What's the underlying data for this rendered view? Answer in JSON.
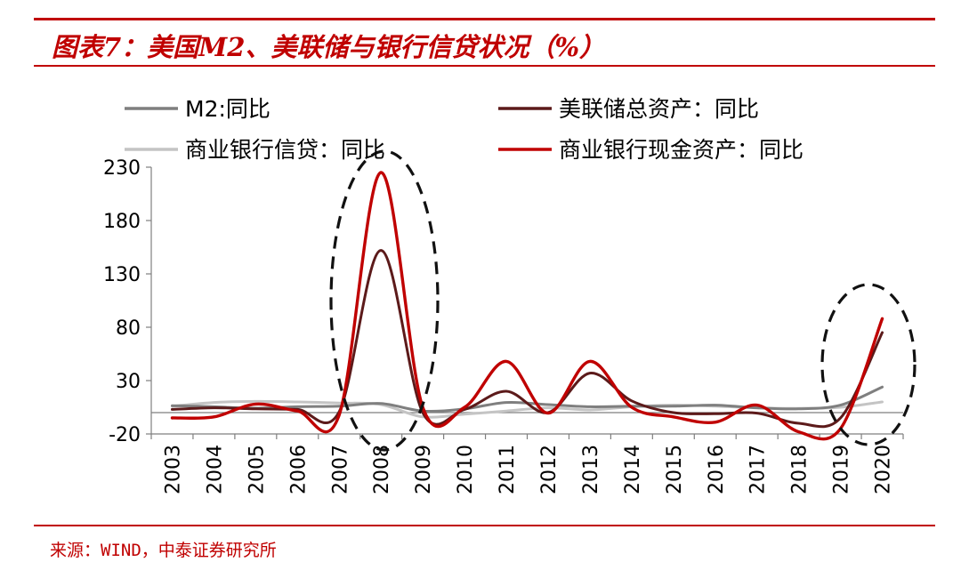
{
  "title": "图表7：美国M2、美联储与银行信贷状况（%）",
  "source": "来源：WIND，中泰证券研究所",
  "chart_data": {
    "type": "line",
    "x": [
      "2003",
      "2004",
      "2005",
      "2006",
      "2007",
      "2008",
      "2009",
      "2010",
      "2011",
      "2012",
      "2013",
      "2014",
      "2015",
      "2016",
      "2017",
      "2018",
      "2019",
      "2020"
    ],
    "ylim": [
      -20,
      230
    ],
    "yticks": [
      -20,
      30,
      80,
      130,
      180,
      230
    ],
    "legend_position": "top",
    "grid": false,
    "series": [
      {
        "name": "M2:同比",
        "color": "#7f7f7f",
        "values": [
          6.5,
          5.5,
          4.2,
          5.5,
          6.0,
          8.5,
          1.5,
          3.5,
          9.5,
          7.5,
          5.5,
          6.0,
          6.0,
          7.0,
          4.5,
          3.5,
          7.0,
          24.0
        ]
      },
      {
        "name": "美联储总资产：同比",
        "color": "#5c1a1a",
        "values": [
          3.0,
          4.5,
          3.5,
          3.0,
          1.0,
          152.0,
          0.0,
          3.0,
          20.0,
          0.0,
          37.0,
          11.0,
          0.0,
          -1.0,
          -0.5,
          -10.0,
          -5.0,
          75.0
        ]
      },
      {
        "name": "商业银行信贷：同比",
        "color": "#c4c4c4",
        "values": [
          6.0,
          9.5,
          10.5,
          10.0,
          9.0,
          7.5,
          -4.0,
          -1.5,
          1.5,
          4.5,
          2.5,
          5.5,
          7.0,
          6.0,
          4.5,
          4.0,
          5.0,
          10.0
        ]
      },
      {
        "name": "商业银行现金资产：同比",
        "color": "#c00000",
        "values": [
          -5.0,
          -4.0,
          8.0,
          1.5,
          -2.0,
          225.0,
          5.0,
          5.0,
          48.0,
          -0.5,
          48.0,
          5.0,
          -4.0,
          -9.0,
          7.0,
          -18.0,
          -15.0,
          88.0
        ]
      }
    ],
    "annotations": [
      {
        "type": "dashed-ellipse",
        "around": "2008"
      },
      {
        "type": "dashed-ellipse",
        "around": "2020"
      }
    ]
  }
}
